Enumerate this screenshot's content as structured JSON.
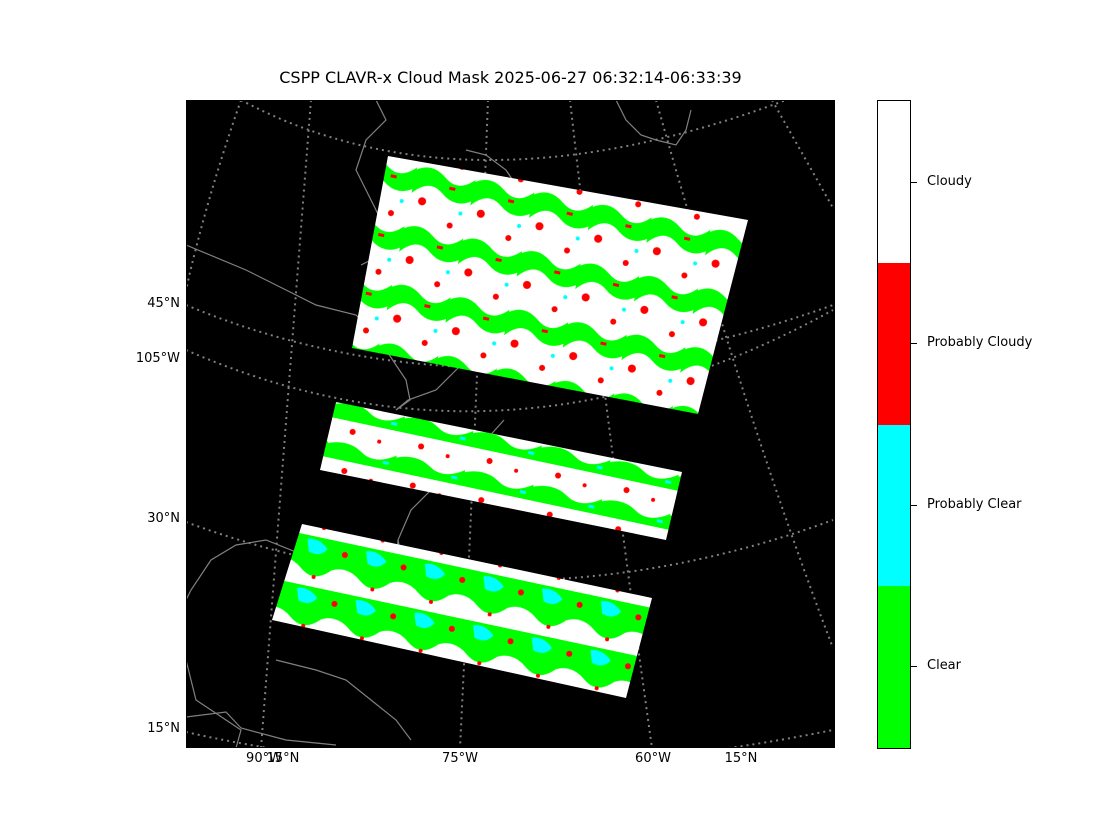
{
  "title": "CSPP CLAVR-x Cloud Mask 2025-06-27 06:32:14-06:33:39",
  "lat_labels": [
    "45°N",
    "105°W",
    "30°N",
    "15°N"
  ],
  "lon_labels": [
    "90°W",
    "15°N",
    "75°W",
    "60°W",
    "15°N"
  ],
  "colorbar": {
    "labels": [
      "Cloudy",
      "Probably Cloudy",
      "Probably Clear",
      "Clear"
    ],
    "colors": [
      "#ffffff",
      "#ff0000",
      "#00ffff",
      "#00ff00"
    ]
  },
  "colors": {
    "background": "#000000",
    "coastline": "#808080",
    "gridline": "#808080"
  }
}
